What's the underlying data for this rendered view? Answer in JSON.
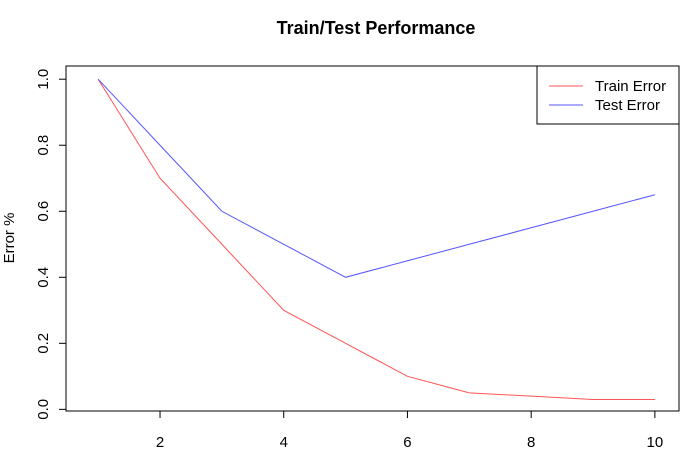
{
  "chart_data": {
    "type": "line",
    "title": "Train/Test Performance",
    "y_label": "Error %",
    "x": [
      1,
      2,
      3,
      4,
      5,
      6,
      7,
      8,
      9,
      10
    ],
    "series": [
      {
        "name": "Train Error",
        "color": "#ff5555",
        "values": [
          1.0,
          0.7,
          0.5,
          0.3,
          0.2,
          0.1,
          0.05,
          0.04,
          0.03,
          0.03
        ]
      },
      {
        "name": "Test Error",
        "color": "#5555ff",
        "values": [
          1.0,
          0.8,
          0.6,
          0.5,
          0.4,
          0.45,
          0.5,
          0.55,
          0.6,
          0.65
        ]
      }
    ],
    "xlim": [
      0.48,
      10.39
    ],
    "ylim": [
      -0.005,
      1.04
    ],
    "xticks": [
      2,
      4,
      6,
      8,
      10
    ],
    "yticks": [
      {
        "value": 0,
        "label": "0.0"
      },
      0.2,
      0.4,
      0.6,
      0.8,
      {
        "value": 1,
        "label": "1.0"
      }
    ],
    "legend": "top-right"
  }
}
